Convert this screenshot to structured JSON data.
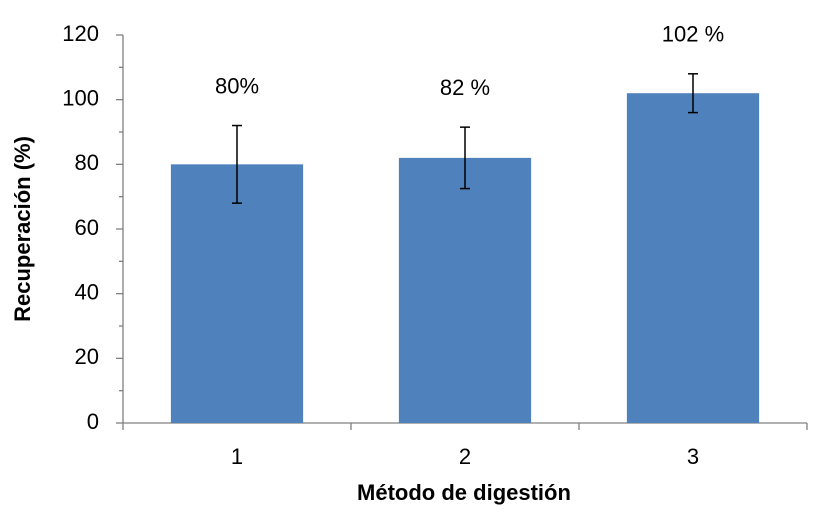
{
  "chart_data": {
    "type": "bar",
    "x_label": "Método de digestión",
    "y_label": "Recuperación (%)",
    "categories": [
      "1",
      "2",
      "3"
    ],
    "values": [
      80,
      82,
      102
    ],
    "errors": [
      12,
      9.5,
      6
    ],
    "value_labels": [
      "80%",
      "82 %",
      "102 %"
    ],
    "color": "#4f81bd",
    "ylim": [
      0,
      120
    ],
    "yticks": [
      0,
      20,
      40,
      60,
      80,
      100,
      120
    ],
    "grid": false
  }
}
